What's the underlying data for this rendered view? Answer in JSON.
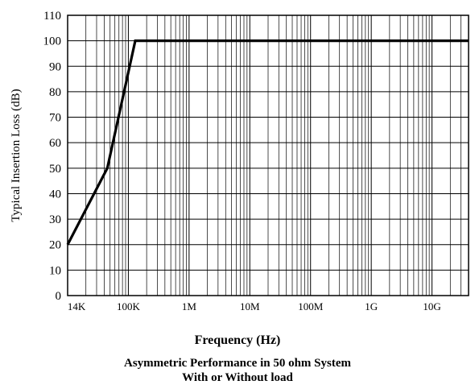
{
  "chart_data": {
    "type": "line",
    "title": "",
    "xlabel": "Frequency (Hz)",
    "ylabel": "Typical Insertion Loss (dB)",
    "subtitle_lines": [
      "Asymmetric Performance in 50 ohm System",
      "With or Without load"
    ],
    "x_scale": "log",
    "xlim": [
      10000,
      40000000000
    ],
    "ylim": [
      0,
      110
    ],
    "y_ticks": [
      "0",
      "10",
      "20",
      "30",
      "40",
      "50",
      "60",
      "70",
      "80",
      "90",
      "100",
      "110"
    ],
    "x_ticks": [
      {
        "label": "14K",
        "value": 14000
      },
      {
        "label": "100K",
        "value": 100000
      },
      {
        "label": "1M",
        "value": 1000000
      },
      {
        "label": "10M",
        "value": 10000000
      },
      {
        "label": "100M",
        "value": 100000000
      },
      {
        "label": "1G",
        "value": 1000000000
      },
      {
        "label": "10G",
        "value": 10000000000
      }
    ],
    "grid": true,
    "series": [
      {
        "x": [
          10000,
          45000,
          130000,
          40000000000
        ],
        "y": [
          20,
          50,
          100,
          100
        ]
      }
    ]
  }
}
